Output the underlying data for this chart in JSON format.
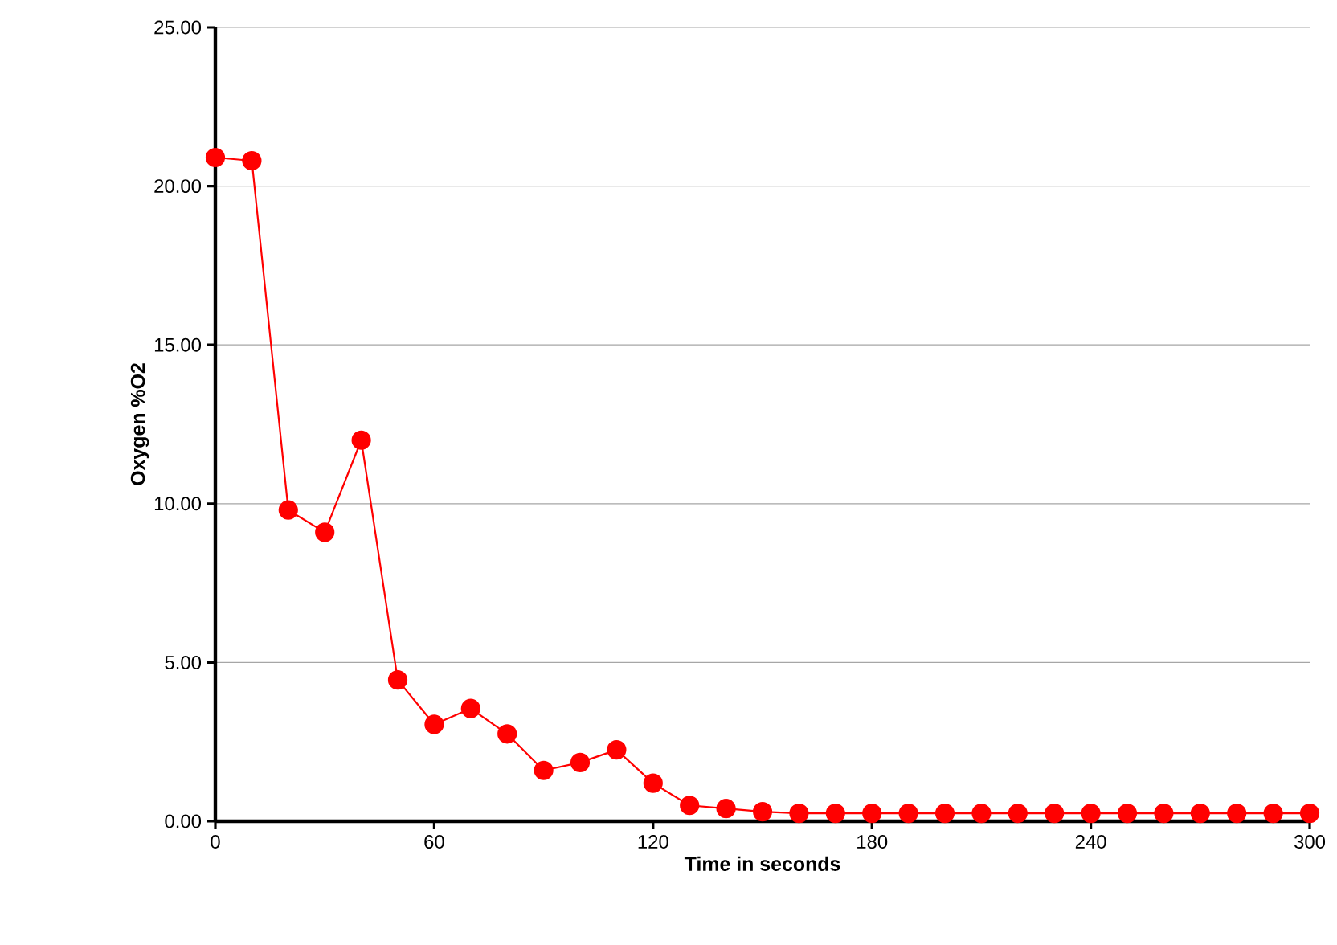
{
  "chart_data": {
    "type": "line",
    "xlabel": "Time in seconds",
    "ylabel": "Oxygen %O2",
    "x": [
      0,
      10,
      20,
      30,
      40,
      50,
      60,
      70,
      80,
      90,
      100,
      110,
      120,
      130,
      140,
      150,
      160,
      170,
      180,
      190,
      200,
      210,
      220,
      230,
      240,
      250,
      260,
      270,
      280,
      290,
      300
    ],
    "series": [
      {
        "color": "#ff0000",
        "values": [
          20.9,
          20.8,
          9.8,
          9.1,
          12.0,
          4.45,
          3.05,
          3.55,
          2.75,
          1.6,
          1.85,
          2.25,
          1.2,
          0.5,
          0.4,
          0.3,
          0.25,
          0.25,
          0.25,
          0.25,
          0.25,
          0.25,
          0.25,
          0.25,
          0.25,
          0.25,
          0.25,
          0.25,
          0.25,
          0.25,
          0.25
        ]
      }
    ],
    "xlim": [
      0,
      300
    ],
    "ylim": [
      0,
      25
    ],
    "xticks": [
      0,
      60,
      120,
      180,
      240,
      300
    ],
    "yticks": [
      {
        "value": 0,
        "label": "0.00"
      },
      {
        "value": 5,
        "label": "5.00"
      },
      {
        "value": 10,
        "label": "10.00"
      },
      {
        "value": 15,
        "label": "15.00"
      },
      {
        "value": 20,
        "label": "20.00"
      },
      {
        "value": 25,
        "label": "25.00"
      }
    ],
    "grid": "y",
    "marker": "circle",
    "line_style": "solid"
  }
}
